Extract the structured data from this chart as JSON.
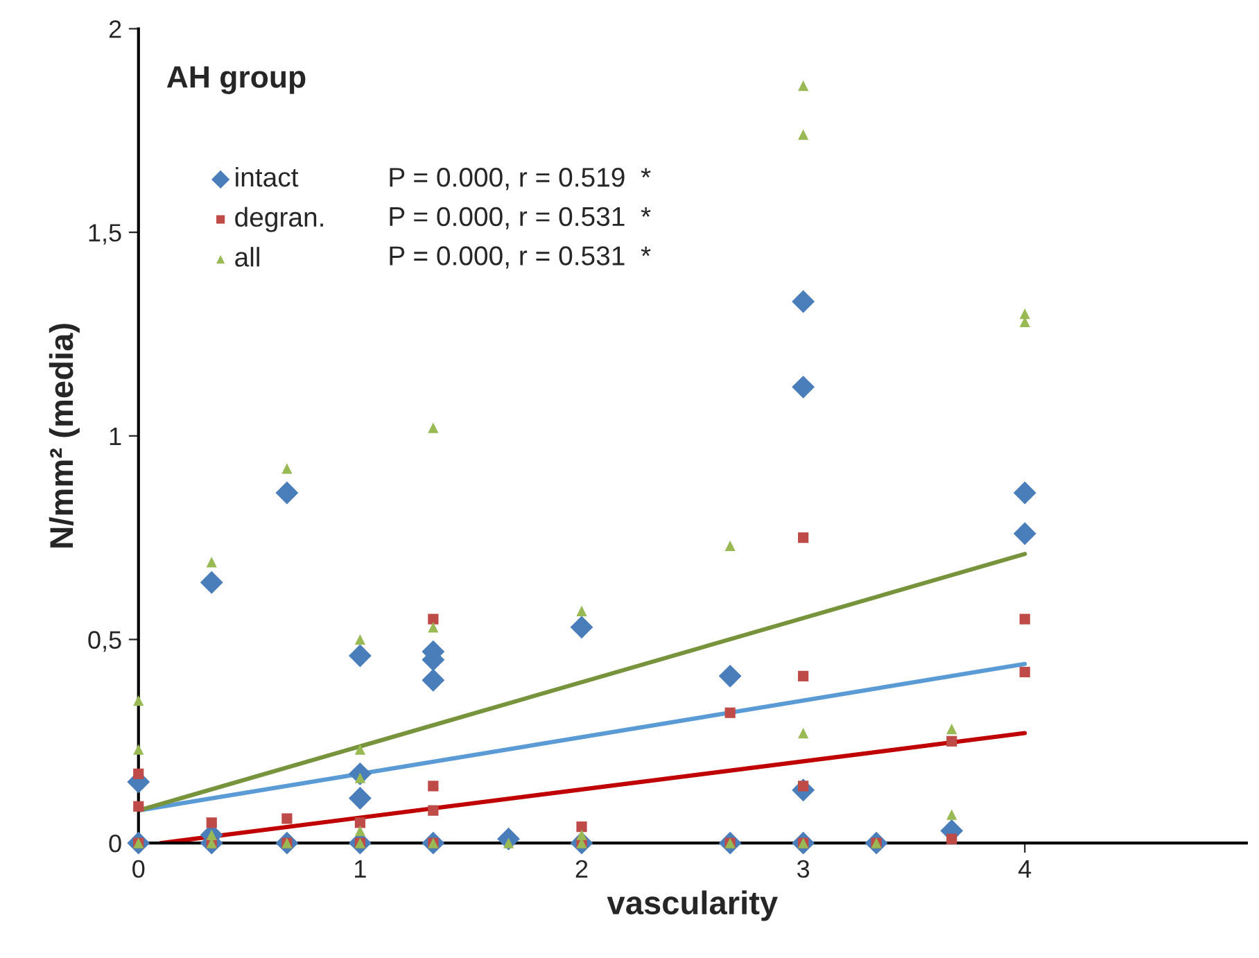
{
  "chart_data": {
    "type": "scatter",
    "title": "AH group",
    "xlabel": "vascularity",
    "ylabel": "N/mm² (media)",
    "xlim": [
      0,
      5
    ],
    "xticks": [
      0,
      1,
      2,
      3,
      4
    ],
    "ylim": [
      0,
      2
    ],
    "yticks": [
      0,
      {
        "value": 0.5,
        "label": "0,5"
      },
      1,
      {
        "value": 1.5,
        "label": "1,5"
      },
      2
    ],
    "grid": false,
    "legend": "top left",
    "annotations": [
      "P = 0.000, r = 0.519  *",
      "P = 0.000, r = 0.531  *",
      "P = 0.000, r = 0.531  *"
    ],
    "series": [
      {
        "name": "intact",
        "marker": "diamond",
        "color": "#4a7ebb",
        "x": [
          0,
          0,
          0.33,
          0.33,
          0.33,
          0.67,
          0.67,
          1,
          1,
          1,
          1,
          1.33,
          1.33,
          1.33,
          1.33,
          1.67,
          2,
          2,
          2.67,
          2.67,
          3,
          3,
          3,
          3,
          3.33,
          3.67,
          4,
          4
        ],
        "values": [
          0.15,
          0,
          0.64,
          0.02,
          0,
          0.86,
          0,
          0.46,
          0.17,
          0.11,
          0,
          0.47,
          0.45,
          0.4,
          0,
          0.01,
          0.53,
          0,
          0.41,
          0,
          1.33,
          1.12,
          0.13,
          0,
          0,
          0.03,
          0.86,
          0.76
        ]
      },
      {
        "name": "degran.",
        "marker": "square",
        "color": "#be4b48",
        "x": [
          0,
          0,
          0,
          0.33,
          0.33,
          0.67,
          0.67,
          1,
          1,
          1.33,
          1.33,
          1.33,
          1.33,
          2,
          2,
          2.67,
          2.67,
          3,
          3,
          3,
          3,
          3.33,
          3.67,
          3.67,
          4,
          4
        ],
        "values": [
          0.17,
          0.09,
          0,
          0.05,
          0,
          0.06,
          0,
          0.05,
          0,
          0.55,
          0.14,
          0.08,
          0,
          0.04,
          0,
          0.32,
          0,
          0.75,
          0.41,
          0.14,
          0,
          0,
          0.25,
          0.01,
          0.55,
          0.42
        ]
      },
      {
        "name": "all",
        "marker": "triangle",
        "color": "#98b954",
        "x": [
          0,
          0,
          0,
          0.33,
          0.33,
          0.33,
          0.67,
          0.67,
          1,
          1,
          1,
          1,
          1,
          1.33,
          1.33,
          1.33,
          1.67,
          2,
          2,
          2,
          2.67,
          2.67,
          3,
          3,
          3,
          3,
          3.33,
          3.67,
          3.67,
          4,
          4
        ],
        "values": [
          0.35,
          0.23,
          0,
          0.69,
          0.02,
          0,
          0.92,
          0,
          0.5,
          0.23,
          0.16,
          0.03,
          0,
          1.02,
          0.53,
          0,
          0,
          0.57,
          0.02,
          0,
          0.73,
          0,
          1.86,
          1.74,
          0.27,
          0,
          0,
          0.28,
          0.07,
          1.3,
          1.28
        ]
      },
      {
        "type": "line",
        "color": "#5b9bd5",
        "x": [
          0,
          4
        ],
        "values": [
          0.08,
          0.44
        ]
      },
      {
        "type": "line",
        "color": "#c00000",
        "x": [
          0.1,
          4
        ],
        "values": [
          0,
          0.27
        ]
      },
      {
        "type": "line",
        "color": "#77933c",
        "x": [
          0,
          4
        ],
        "values": [
          0.08,
          0.71
        ]
      }
    ]
  }
}
